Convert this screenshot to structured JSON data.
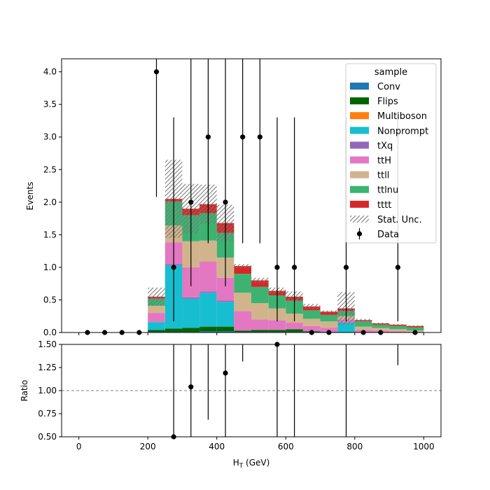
{
  "chart_data": [
    {
      "type": "stacked-histogram",
      "xlim": [
        -50,
        1050
      ],
      "ylim": [
        0,
        4.2
      ],
      "ylabel": "Events",
      "yticks": [
        "0.0",
        "0.5",
        "1.0",
        "1.5",
        "2.0",
        "2.5",
        "3.0",
        "3.5",
        "4.0"
      ],
      "ytick_values": [
        0,
        0.5,
        1.0,
        1.5,
        2.0,
        2.5,
        3.0,
        3.5,
        4.0
      ],
      "xtick_values": [
        0,
        200,
        400,
        600,
        800,
        1000
      ],
      "bin_edges": [
        0,
        50,
        100,
        150,
        200,
        250,
        300,
        350,
        400,
        450,
        500,
        550,
        600,
        650,
        700,
        750,
        800,
        850,
        900,
        950,
        1000
      ],
      "series": [
        {
          "name": "Conv",
          "color": "#1f77b4",
          "values": [
            0,
            0,
            0,
            0,
            0.01,
            0.01,
            0.01,
            0.02,
            0.02,
            0.01,
            0.01,
            0.01,
            0.01,
            0.01,
            0.01,
            0,
            0,
            0,
            0,
            0
          ]
        },
        {
          "name": "Flips",
          "color": "#006400",
          "values": [
            0,
            0,
            0,
            0,
            0.03,
            0.05,
            0.06,
            0.07,
            0.07,
            0.02,
            0.03,
            0.03,
            0.04,
            0.01,
            0,
            0,
            0,
            0,
            0,
            0
          ]
        },
        {
          "name": "Multiboson",
          "color": "#ff7f0e",
          "values": [
            0,
            0,
            0,
            0,
            0,
            0,
            0,
            0,
            0,
            0,
            0,
            0,
            0,
            0,
            0,
            0,
            0,
            0,
            0,
            0
          ]
        },
        {
          "name": "Nonprompt",
          "color": "#17becf",
          "values": [
            0,
            0,
            0,
            0,
            0.12,
            0.97,
            0.45,
            0.52,
            0.38,
            0,
            0,
            0,
            0,
            0,
            0,
            0.15,
            0,
            0,
            0,
            0
          ]
        },
        {
          "name": "tXq",
          "color": "#9467bd",
          "values": [
            0,
            0,
            0,
            0,
            0,
            0.02,
            0.02,
            0.02,
            0.02,
            0,
            0,
            0,
            0,
            0,
            0,
            0,
            0,
            0,
            0,
            0
          ]
        },
        {
          "name": "ttH",
          "color": "#e377c2",
          "values": [
            0,
            0,
            0,
            0,
            0.14,
            0.33,
            0.46,
            0.46,
            0.35,
            0.3,
            0.16,
            0.15,
            0.1,
            0.08,
            0.06,
            0.05,
            0.04,
            0.03,
            0.02,
            0.01
          ]
        },
        {
          "name": "ttll",
          "color": "#d2b48c",
          "values": [
            0,
            0,
            0,
            0,
            0.11,
            0.26,
            0.4,
            0.32,
            0.31,
            0.28,
            0.25,
            0.18,
            0.14,
            0.11,
            0.1,
            0.05,
            0.05,
            0.04,
            0.03,
            0.02
          ]
        },
        {
          "name": "ttlnu",
          "color": "#3cb371",
          "values": [
            0,
            0,
            0,
            0,
            0.11,
            0.37,
            0.4,
            0.42,
            0.38,
            0.29,
            0.25,
            0.2,
            0.2,
            0.13,
            0.1,
            0.08,
            0.08,
            0.05,
            0.05,
            0.05
          ]
        },
        {
          "name": "tttt",
          "color": "#d62728",
          "values": [
            0,
            0,
            0,
            0,
            0.03,
            0.04,
            0.1,
            0.14,
            0.15,
            0.12,
            0.1,
            0.07,
            0.06,
            0.06,
            0.05,
            0.04,
            0.02,
            0.02,
            0.02,
            0.02
          ]
        }
      ],
      "total_mc": [
        0,
        0,
        0,
        0,
        0.55,
        2.05,
        1.9,
        1.97,
        1.68,
        1.02,
        0.8,
        0.64,
        0.55,
        0.4,
        0.32,
        0.37,
        0.19,
        0.14,
        0.12,
        0.1
      ],
      "stat_unc": [
        0,
        0,
        0,
        0,
        0.14,
        0.6,
        0.38,
        0.3,
        0.28,
        0.03,
        0.04,
        0.05,
        0.08,
        0.04,
        0.02,
        0.25,
        0.02,
        0.01,
        0.01,
        0.01
      ],
      "data": {
        "x": [
          25,
          75,
          125,
          175,
          225,
          275,
          325,
          375,
          425,
          475,
          525,
          575,
          625,
          675,
          725,
          775,
          825,
          875,
          925,
          975
        ],
        "y": [
          0,
          0,
          0,
          0,
          4,
          1,
          2,
          3,
          2,
          3,
          3,
          1,
          1,
          0,
          0,
          1,
          0,
          0,
          1,
          0
        ],
        "err_up": [
          0,
          0,
          0,
          0,
          1.92,
          2.3,
          2.64,
          2.92,
          2.64,
          2.92,
          2.92,
          2.3,
          2.3,
          0,
          0,
          2.3,
          0,
          0,
          2.3,
          0
        ],
        "err_down": [
          0,
          0,
          0,
          0,
          1.92,
          0.83,
          1.29,
          1.63,
          1.29,
          1.63,
          1.63,
          0.83,
          0.83,
          0,
          0,
          0.83,
          0,
          0,
          0.83,
          0
        ]
      },
      "legend": {
        "title": "sample",
        "placement": "top-right",
        "entries": [
          "Conv",
          "Flips",
          "Multiboson",
          "Nonprompt",
          "tXq",
          "ttH",
          "ttll",
          "ttlnu",
          "tttt",
          "Stat. Unc.",
          "Data"
        ]
      }
    },
    {
      "type": "scatter",
      "xlabel": "H$_T$ (GeV)",
      "ylabel": "Ratio",
      "xlim": [
        -50,
        1050
      ],
      "ylim": [
        0.5,
        1.5
      ],
      "yticks": [
        "0.50",
        "0.75",
        "1.00",
        "1.25",
        "1.50"
      ],
      "ytick_values": [
        0.5,
        0.75,
        1.0,
        1.25,
        1.5
      ],
      "xticks": [
        "0",
        "200",
        "400",
        "600",
        "800",
        "1000"
      ],
      "xtick_values": [
        0,
        200,
        400,
        600,
        800,
        1000
      ],
      "reference_line": 1.0,
      "points": {
        "x": [
          275,
          325,
          425,
          575
        ],
        "y": [
          0.5,
          1.04,
          1.19,
          1.5
        ]
      },
      "error_bars": [
        {
          "x": 275,
          "low": 0.5,
          "high": 1.5
        },
        {
          "x": 325,
          "low": 0.5,
          "high": 1.5
        },
        {
          "x": 375,
          "low": 0.7,
          "high": 1.5
        },
        {
          "x": 425,
          "low": 0.5,
          "high": 1.5
        },
        {
          "x": 475,
          "low": 1.33,
          "high": 1.5
        },
        {
          "x": 575,
          "low": 0.5,
          "high": 1.5
        },
        {
          "x": 625,
          "low": 0.5,
          "high": 1.5
        },
        {
          "x": 775,
          "low": 0.5,
          "high": 1.5
        },
        {
          "x": 925,
          "low": 1.29,
          "high": 1.5
        }
      ]
    }
  ],
  "text": {
    "xlabel_main": "H",
    "xlabel_sub": "T",
    "xlabel_unit": " (GeV)"
  }
}
